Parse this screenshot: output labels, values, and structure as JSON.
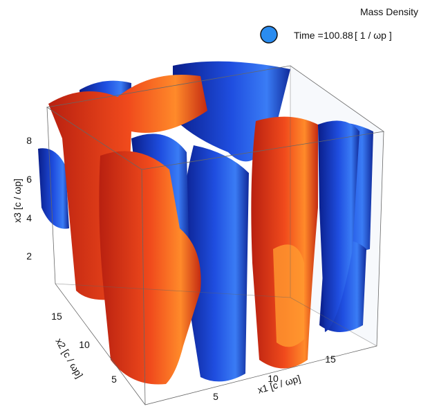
{
  "header": {
    "title": "Mass Density",
    "time_label": "Time =",
    "time_value": "100.88",
    "time_unit": "[ 1 / ωp ]"
  },
  "axes": {
    "x3": {
      "label": "x3 [c / ωp]",
      "ticks": [
        2,
        4,
        6,
        8
      ]
    },
    "x2": {
      "label": "x2 [c / ωp]",
      "ticks": [
        5,
        10,
        15
      ]
    },
    "x1": {
      "label": "x1 [c / ωp]",
      "ticks": [
        5,
        10,
        15
      ]
    }
  }
}
